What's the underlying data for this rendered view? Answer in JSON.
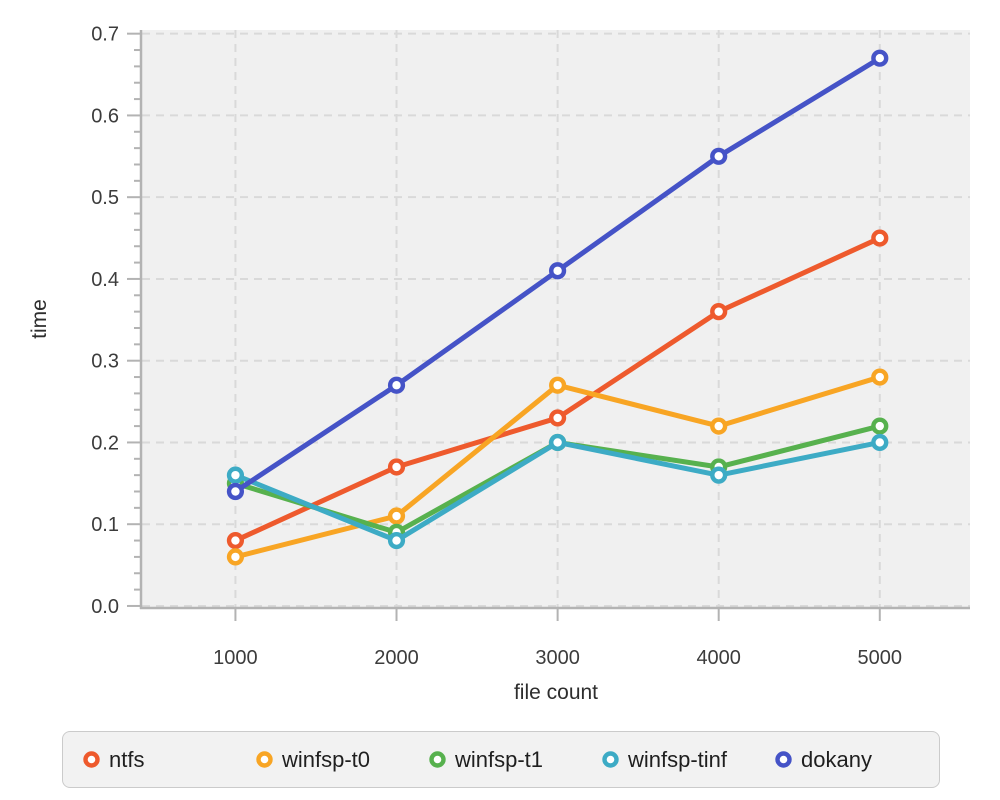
{
  "chart_data": {
    "type": "line",
    "title": "",
    "xlabel": "file count",
    "ylabel": "time",
    "x": [
      1000,
      2000,
      3000,
      4000,
      5000
    ],
    "series": [
      {
        "name": "ntfs",
        "color": "#ee5a2d",
        "values": [
          0.08,
          0.17,
          0.23,
          0.36,
          0.45
        ]
      },
      {
        "name": "winfsp-t0",
        "color": "#f8a524",
        "values": [
          0.06,
          0.11,
          0.27,
          0.22,
          0.28
        ]
      },
      {
        "name": "winfsp-t1",
        "color": "#57b14e",
        "values": [
          0.15,
          0.09,
          0.2,
          0.17,
          0.22
        ]
      },
      {
        "name": "winfsp-tinf",
        "color": "#3dabc5",
        "values": [
          0.16,
          0.08,
          0.2,
          0.16,
          0.2
        ]
      },
      {
        "name": "dokany",
        "color": "#4553c7",
        "values": [
          0.14,
          0.27,
          0.41,
          0.55,
          0.67
        ]
      }
    ],
    "xlim": [
      420,
      5560
    ],
    "ylim": [
      -0.0025,
      0.7045
    ],
    "x_ticks": [
      1000,
      2000,
      3000,
      4000,
      5000
    ],
    "x_tick_labels": [
      "1000",
      "2000",
      "3000",
      "4000",
      "5000"
    ],
    "y_ticks": [
      0.0,
      0.1,
      0.2,
      0.3,
      0.4,
      0.5,
      0.6,
      0.7
    ],
    "y_tick_labels": [
      "0.0",
      "0.1",
      "0.2",
      "0.3",
      "0.4",
      "0.5",
      "0.6",
      "0.7"
    ],
    "y_minor_step": 0.02,
    "grid": true,
    "legend_position": "bottom",
    "marker": "open-circle"
  },
  "colors": {
    "plot_background": "#f0f0f0",
    "gridline": "#d9d9d9",
    "axis_line": "#b3b3b3",
    "tick_label": "#3c3c3c",
    "axis_title": "#2e2e2e",
    "legend_background": "#f2f2f2",
    "legend_border": "#cbcbcb",
    "legend_text": "#1f1f1f"
  }
}
